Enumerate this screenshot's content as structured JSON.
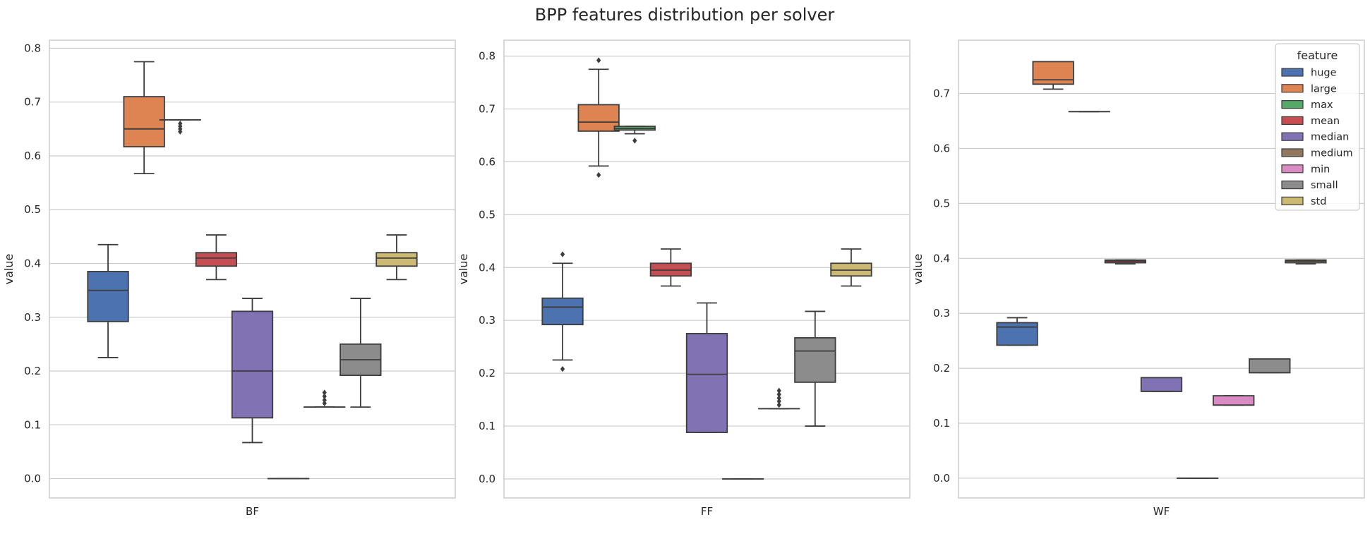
{
  "figure": {
    "title": "BPP features distribution per solver"
  },
  "chart_data": {
    "type": "box",
    "title": "BPP features distribution per solver",
    "legend": {
      "title": "feature",
      "placement": "top-right",
      "entries": [
        "huge",
        "large",
        "max",
        "mean",
        "median",
        "medium",
        "min",
        "small",
        "std"
      ]
    },
    "colors": {
      "huge": "#4c72b0",
      "large": "#dd8452",
      "max": "#55a868",
      "mean": "#c44e52",
      "median": "#8172b3",
      "medium": "#937860",
      "min": "#da8bc3",
      "small": "#8c8c8c",
      "std": "#ccb974"
    },
    "panels": [
      {
        "category": "BF",
        "ylabel": "value",
        "ylim": [
          -0.036,
          0.815
        ],
        "yticks": [
          "0.0",
          "0.1",
          "0.2",
          "0.3",
          "0.4",
          "0.5",
          "0.6",
          "0.7",
          "0.8"
        ],
        "boxes": [
          {
            "feature": "huge",
            "whislo": 0.225,
            "q1": 0.292,
            "med": 0.35,
            "q3": 0.385,
            "whishi": 0.435,
            "fliers": []
          },
          {
            "feature": "large",
            "whislo": 0.567,
            "q1": 0.617,
            "med": 0.65,
            "q3": 0.71,
            "whishi": 0.775,
            "fliers": []
          },
          {
            "feature": "max",
            "whislo": 0.667,
            "q1": 0.667,
            "med": 0.667,
            "q3": 0.667,
            "whishi": 0.667,
            "fliers": [
              0.645,
              0.65,
              0.655,
              0.66
            ]
          },
          {
            "feature": "mean",
            "whislo": 0.37,
            "q1": 0.395,
            "med": 0.41,
            "q3": 0.42,
            "whishi": 0.453,
            "fliers": []
          },
          {
            "feature": "median",
            "whislo": 0.067,
            "q1": 0.113,
            "med": 0.2,
            "q3": 0.311,
            "whishi": 0.335,
            "fliers": []
          },
          {
            "feature": "medium",
            "whislo": 0.0,
            "q1": 0.0,
            "med": 0.0,
            "q3": 0.0,
            "whishi": 0.0,
            "fliers": []
          },
          {
            "feature": "min",
            "whislo": 0.133,
            "q1": 0.133,
            "med": 0.133,
            "q3": 0.133,
            "whishi": 0.133,
            "fliers": [
              0.14,
              0.146,
              0.153,
              0.16
            ]
          },
          {
            "feature": "small",
            "whislo": 0.133,
            "q1": 0.192,
            "med": 0.221,
            "q3": 0.25,
            "whishi": 0.335,
            "fliers": []
          },
          {
            "feature": "std",
            "whislo": 0.37,
            "q1": 0.395,
            "med": 0.41,
            "q3": 0.42,
            "whishi": 0.453,
            "fliers": []
          }
        ]
      },
      {
        "category": "FF",
        "ylabel": "value",
        "ylim": [
          -0.036,
          0.83
        ],
        "yticks": [
          "0.0",
          "0.1",
          "0.2",
          "0.3",
          "0.4",
          "0.5",
          "0.6",
          "0.7",
          "0.8"
        ],
        "boxes": [
          {
            "feature": "huge",
            "whislo": 0.225,
            "q1": 0.292,
            "med": 0.325,
            "q3": 0.342,
            "whishi": 0.408,
            "fliers": [
              0.208,
              0.425
            ]
          },
          {
            "feature": "large",
            "whislo": 0.592,
            "q1": 0.658,
            "med": 0.675,
            "q3": 0.708,
            "whishi": 0.775,
            "fliers": [
              0.575,
              0.792
            ]
          },
          {
            "feature": "max",
            "whislo": 0.653,
            "q1": 0.66,
            "med": 0.663,
            "q3": 0.667,
            "whishi": 0.667,
            "fliers": [
              0.64
            ]
          },
          {
            "feature": "mean",
            "whislo": 0.365,
            "q1": 0.384,
            "med": 0.395,
            "q3": 0.408,
            "whishi": 0.435,
            "fliers": []
          },
          {
            "feature": "median",
            "whislo": 0.088,
            "q1": 0.088,
            "med": 0.198,
            "q3": 0.275,
            "whishi": 0.333,
            "fliers": []
          },
          {
            "feature": "medium",
            "whislo": 0.0,
            "q1": 0.0,
            "med": 0.0,
            "q3": 0.0,
            "whishi": 0.0,
            "fliers": []
          },
          {
            "feature": "min",
            "whislo": 0.133,
            "q1": 0.133,
            "med": 0.133,
            "q3": 0.133,
            "whishi": 0.133,
            "fliers": [
              0.14,
              0.147,
              0.153,
              0.16,
              0.167
            ]
          },
          {
            "feature": "small",
            "whislo": 0.1,
            "q1": 0.183,
            "med": 0.242,
            "q3": 0.267,
            "whishi": 0.317,
            "fliers": []
          },
          {
            "feature": "std",
            "whislo": 0.365,
            "q1": 0.384,
            "med": 0.395,
            "q3": 0.408,
            "whishi": 0.435,
            "fliers": []
          }
        ]
      },
      {
        "category": "WF",
        "ylabel": "value",
        "ylim": [
          -0.036,
          0.797
        ],
        "yticks": [
          "0.0",
          "0.1",
          "0.2",
          "0.3",
          "0.4",
          "0.5",
          "0.6",
          "0.7"
        ],
        "boxes": [
          {
            "feature": "huge",
            "whislo": 0.242,
            "q1": 0.242,
            "med": 0.275,
            "q3": 0.283,
            "whishi": 0.292,
            "fliers": []
          },
          {
            "feature": "large",
            "whislo": 0.708,
            "q1": 0.717,
            "med": 0.725,
            "q3": 0.758,
            "whishi": 0.758,
            "fliers": []
          },
          {
            "feature": "max",
            "whislo": 0.667,
            "q1": 0.667,
            "med": 0.667,
            "q3": 0.667,
            "whishi": 0.667,
            "fliers": []
          },
          {
            "feature": "mean",
            "whislo": 0.39,
            "q1": 0.392,
            "med": 0.395,
            "q3": 0.397,
            "whishi": 0.397,
            "fliers": []
          },
          {
            "feature": "median",
            "whislo": 0.158,
            "q1": 0.158,
            "med": 0.158,
            "q3": 0.183,
            "whishi": 0.183,
            "fliers": []
          },
          {
            "feature": "medium",
            "whislo": 0.0,
            "q1": 0.0,
            "med": 0.0,
            "q3": 0.0,
            "whishi": 0.0,
            "fliers": []
          },
          {
            "feature": "min",
            "whislo": 0.133,
            "q1": 0.133,
            "med": 0.133,
            "q3": 0.15,
            "whishi": 0.15,
            "fliers": []
          },
          {
            "feature": "small",
            "whislo": 0.192,
            "q1": 0.192,
            "med": 0.192,
            "q3": 0.217,
            "whishi": 0.217,
            "fliers": []
          },
          {
            "feature": "std",
            "whislo": 0.39,
            "q1": 0.392,
            "med": 0.395,
            "q3": 0.397,
            "whishi": 0.397,
            "fliers": []
          }
        ]
      }
    ]
  }
}
